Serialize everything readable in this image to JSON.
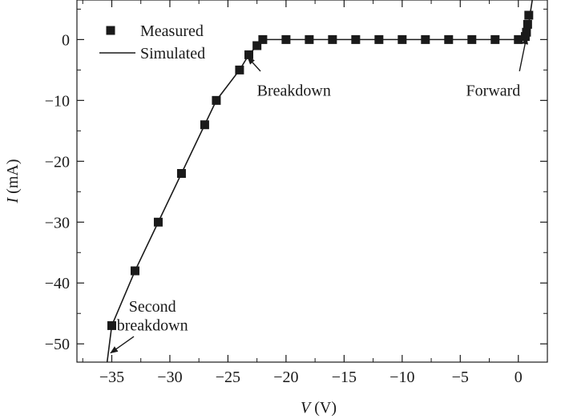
{
  "chart_data": {
    "type": "scatter",
    "xlabel": {
      "var": "V",
      "unit": " (V)"
    },
    "ylabel": {
      "var": "I",
      "unit": " (mA)"
    },
    "xlim": [
      -38,
      2.5
    ],
    "ylim": [
      -53,
      6.5
    ],
    "xticks": [
      -35,
      -30,
      -25,
      -20,
      -15,
      -10,
      -5,
      0
    ],
    "xtick_labels": [
      "−35",
      "−30",
      "−25",
      "−20",
      "−15",
      "−10",
      "−5",
      "0"
    ],
    "yticks": [
      0,
      -10,
      -20,
      -30,
      -40,
      -50
    ],
    "ytick_labels": [
      "0",
      "−10",
      "−20",
      "−30",
      "−40",
      "−50"
    ],
    "grid": false,
    "legend_position": "top-left",
    "series": [
      {
        "name": "Measured",
        "marker": "square",
        "color": "#1a1a1a",
        "points": [
          [
            -35,
            -47
          ],
          [
            -33,
            -38
          ],
          [
            -31,
            -30
          ],
          [
            -29,
            -22
          ],
          [
            -27,
            -14
          ],
          [
            -26,
            -10
          ],
          [
            -24,
            -5
          ],
          [
            -23.2,
            -2.5
          ],
          [
            -22.5,
            -1
          ],
          [
            -22,
            0
          ],
          [
            -20,
            0
          ],
          [
            -18,
            0
          ],
          [
            -16,
            0
          ],
          [
            -14,
            0
          ],
          [
            -12,
            0
          ],
          [
            -10,
            0
          ],
          [
            -8,
            0
          ],
          [
            -6,
            0
          ],
          [
            -4,
            0
          ],
          [
            -2,
            0
          ],
          [
            0,
            0
          ],
          [
            0.6,
            0.5
          ],
          [
            0.7,
            1.2
          ],
          [
            0.8,
            2.5
          ],
          [
            0.9,
            4
          ]
        ]
      },
      {
        "name": "Simulated",
        "marker": "line",
        "color": "#1a1a1a",
        "points": [
          [
            -35.4,
            -53
          ],
          [
            -35,
            -47
          ],
          [
            -33,
            -38
          ],
          [
            -31,
            -30
          ],
          [
            -29,
            -22
          ],
          [
            -27,
            -14
          ],
          [
            -26,
            -10
          ],
          [
            -24,
            -5
          ],
          [
            -23.2,
            -2.5
          ],
          [
            -22.5,
            -1
          ],
          [
            -22,
            0
          ],
          [
            0.5,
            0
          ],
          [
            0.7,
            0.8
          ],
          [
            0.85,
            2
          ],
          [
            1.0,
            4
          ],
          [
            1.2,
            6.5
          ]
        ]
      }
    ],
    "annotations": [
      {
        "lines": [
          "Breakdown"
        ],
        "text_at": [
          -22.5,
          -9.2
        ],
        "align": "start",
        "arrow_from": [
          -22.2,
          -5.2
        ],
        "arrow_to": [
          -23.3,
          -2.9
        ]
      },
      {
        "lines": [
          "Forward"
        ],
        "text_at": [
          -4.5,
          -9.2
        ],
        "align": "start",
        "arrow_from": [
          0.1,
          -5.2
        ],
        "arrow_to": [
          0.7,
          0.4
        ]
      },
      {
        "lines": [
          "Second",
          "breakdown"
        ],
        "text_at": [
          -31.5,
          -44.7
        ],
        "align": "middle",
        "line_gap": 3.1,
        "arrow_from": [
          -33.1,
          -48.8
        ],
        "arrow_to": [
          -35.1,
          -51.5
        ]
      }
    ]
  }
}
